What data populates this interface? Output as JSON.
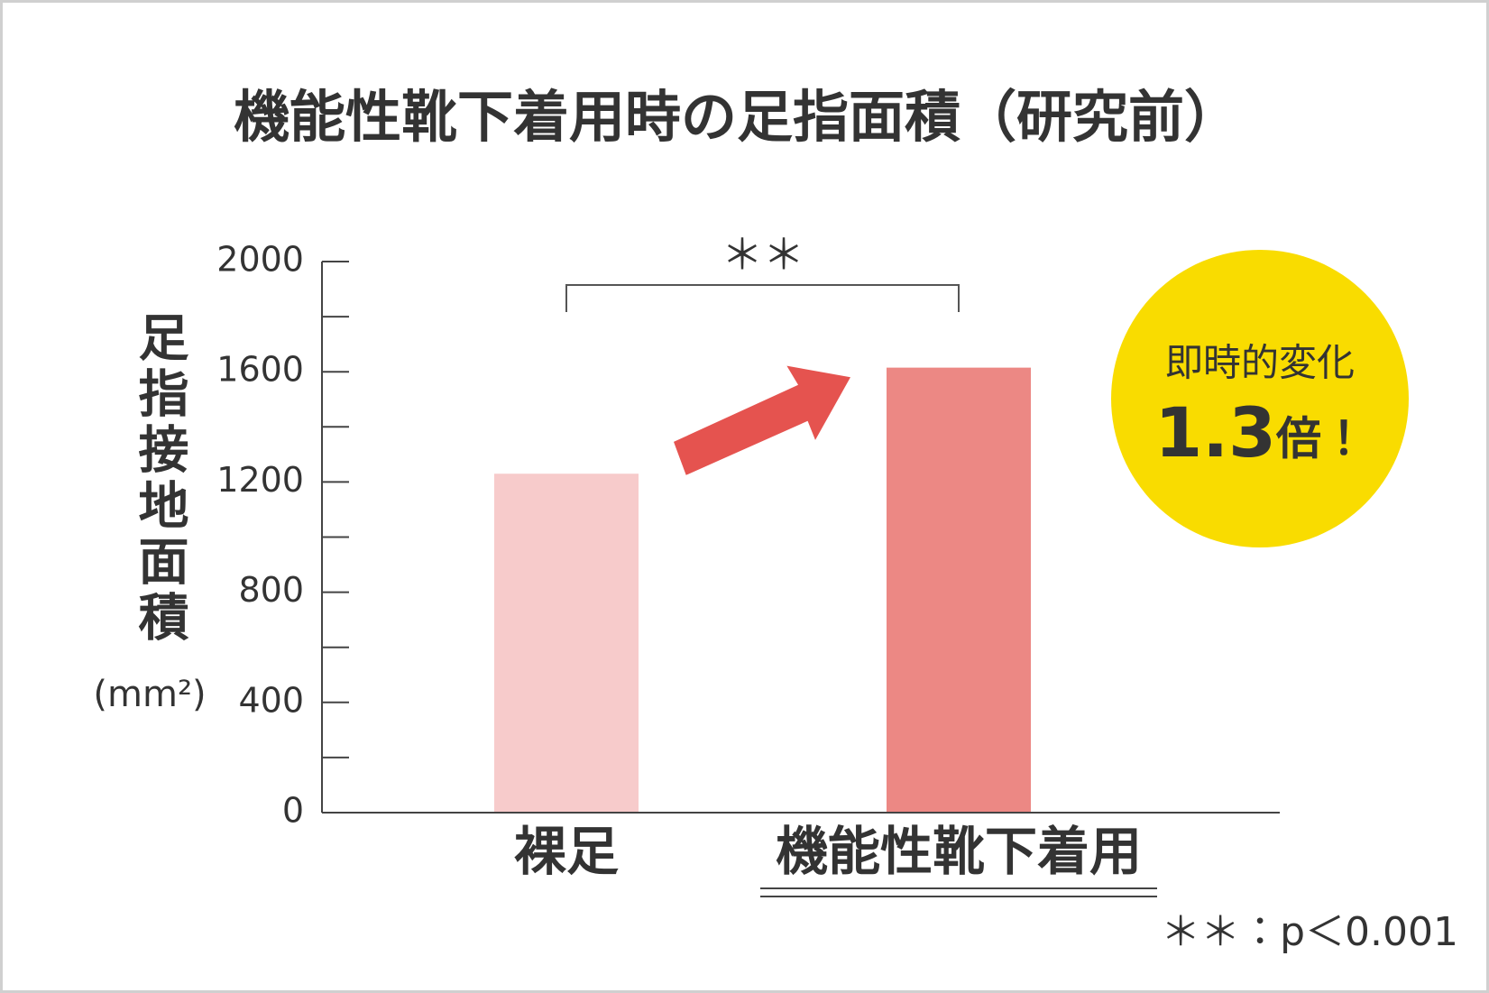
{
  "chart_data": {
    "type": "bar",
    "title": "機能性靴下着用時の足指面積（研究前）",
    "y_label": "足指接地面積",
    "y_unit": "(mm²)",
    "categories": [
      "裸足",
      "機能性靴下着用"
    ],
    "values": [
      1230,
      1615
    ],
    "colors": [
      "#f7cbcb",
      "#ec8884"
    ],
    "ylim": [
      0,
      2000
    ],
    "yticks": [
      0,
      400,
      800,
      1200,
      1600,
      2000
    ],
    "minor_yticks": [
      200,
      600,
      1000,
      1400,
      1800
    ],
    "significance": "＊＊",
    "badge_text": "即時的変化",
    "badge_number": "1.3",
    "badge_unit": "倍！",
    "badge_color": "#f9dc00",
    "arrow_color": "#e5534f",
    "footnote": "＊＊：p＜0.001"
  }
}
